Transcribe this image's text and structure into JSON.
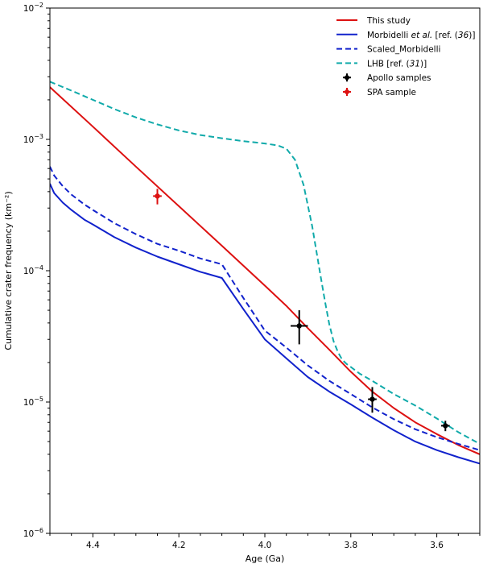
{
  "chart_data": {
    "type": "line",
    "title": "",
    "xlabel": "Age (Ga)",
    "ylabel": "Cumulative crater frequency (km⁻²)",
    "x_reversed": true,
    "xlim": [
      4.5,
      3.5
    ],
    "ylim": [
      1e-06,
      0.01
    ],
    "y_scale": "log",
    "x_ticks": [
      4.4,
      4.2,
      4.0,
      3.8,
      3.6
    ],
    "x_tick_labels": [
      "4.4",
      "4.2",
      "4.0",
      "3.8",
      "3.6"
    ],
    "y_ticks": [
      {
        "value": 1e-06,
        "base": "10",
        "exp": "−6"
      },
      {
        "value": 1e-05,
        "base": "10",
        "exp": "−5"
      },
      {
        "value": 0.0001,
        "base": "10",
        "exp": "−4"
      },
      {
        "value": 0.001,
        "base": "10",
        "exp": "−3"
      },
      {
        "value": 0.01,
        "base": "10",
        "exp": "−2"
      }
    ],
    "legend_position": "top-right",
    "series": [
      {
        "name": "This study",
        "legend": [
          {
            "text": "This study"
          }
        ],
        "color": "#dd1111",
        "style": "solid",
        "x": [
          4.5,
          4.4,
          4.3,
          4.2,
          4.1,
          4.0,
          3.95,
          3.9,
          3.85,
          3.8,
          3.75,
          3.7,
          3.65,
          3.6,
          3.55,
          3.5
        ],
        "y": [
          0.0025,
          0.00125,
          0.00062,
          0.00031,
          0.000155,
          7.7e-05,
          5.4e-05,
          3.65e-05,
          2.5e-05,
          1.7e-05,
          1.2e-05,
          9e-06,
          7e-06,
          5.7e-06,
          4.7e-06,
          4e-06
        ]
      },
      {
        "name": "Morbidelli et al. [ref. (36)]",
        "legend": [
          {
            "text": "Morbidelli "
          },
          {
            "text": "et al.",
            "italic": true
          },
          {
            "text": "  [ref. ("
          },
          {
            "text": "36",
            "italic": true
          },
          {
            "text": ")]"
          }
        ],
        "color": "#1122cc",
        "style": "solid",
        "x": [
          4.5,
          4.49,
          4.47,
          4.45,
          4.42,
          4.4,
          4.35,
          4.3,
          4.25,
          4.2,
          4.15,
          4.1,
          4.05,
          4.0,
          3.95,
          3.9,
          3.85,
          3.8,
          3.75,
          3.7,
          3.65,
          3.6,
          3.55,
          3.5
        ],
        "y": [
          0.00046,
          0.00039,
          0.00033,
          0.00029,
          0.000245,
          0.000225,
          0.00018,
          0.00015,
          0.000128,
          0.000112,
          9.8e-05,
          8.8e-05,
          5.1e-05,
          3e-05,
          2.15e-05,
          1.55e-05,
          1.2e-05,
          9.6e-06,
          7.6e-06,
          6.1e-06,
          5e-06,
          4.3e-06,
          3.8e-06,
          3.4e-06
        ]
      },
      {
        "name": "Scaled_Morbidelli",
        "legend": [
          {
            "text": "Scaled_Morbidelli"
          }
        ],
        "color": "#1122cc",
        "style": "dashed",
        "x": [
          4.5,
          4.49,
          4.47,
          4.45,
          4.42,
          4.4,
          4.35,
          4.3,
          4.25,
          4.2,
          4.15,
          4.1,
          4.05,
          4.0,
          3.95,
          3.9,
          3.85,
          3.8,
          3.75,
          3.7,
          3.65,
          3.6,
          3.55,
          3.5
        ],
        "y": [
          0.00062,
          0.00053,
          0.00044,
          0.00038,
          0.00032,
          0.00029,
          0.00023,
          0.00019,
          0.00016,
          0.000142,
          0.000124,
          0.000112,
          6.2e-05,
          3.5e-05,
          2.6e-05,
          1.9e-05,
          1.45e-05,
          1.15e-05,
          9.1e-06,
          7.4e-06,
          6.2e-06,
          5.4e-06,
          4.8e-06,
          4.3e-06
        ]
      },
      {
        "name": "LHB [ref. (31)]",
        "legend": [
          {
            "text": "LHB [ref. ("
          },
          {
            "text": "31",
            "italic": true
          },
          {
            "text": ")]"
          }
        ],
        "color": "#11aaaa",
        "style": "dashed",
        "x": [
          4.5,
          4.45,
          4.4,
          4.35,
          4.3,
          4.25,
          4.2,
          4.15,
          4.1,
          4.05,
          4.0,
          3.97,
          3.95,
          3.93,
          3.91,
          3.89,
          3.87,
          3.86,
          3.85,
          3.84,
          3.83,
          3.82,
          3.81,
          3.8,
          3.78,
          3.75,
          3.7,
          3.65,
          3.6,
          3.55,
          3.5
        ],
        "y": [
          0.00275,
          0.00235,
          0.002,
          0.0017,
          0.00147,
          0.0013,
          0.00117,
          0.00108,
          0.00102,
          0.00097,
          0.00093,
          0.0009,
          0.00085,
          0.0007,
          0.00045,
          0.00022,
          9e-05,
          5.8e-05,
          3.9e-05,
          2.9e-05,
          2.4e-05,
          2.1e-05,
          1.95e-05,
          1.85e-05,
          1.65e-05,
          1.45e-05,
          1.15e-05,
          9.4e-06,
          7.5e-06,
          5.9e-06,
          4.8e-06
        ]
      }
    ],
    "points": [
      {
        "name": "Apollo samples",
        "legend": [
          {
            "text": "Apollo samples"
          }
        ],
        "color": "#000000",
        "data": [
          {
            "x": 3.92,
            "y": 3.8e-05,
            "xerr": 0.02,
            "ylo": 2.75e-05,
            "yhi": 5e-05
          },
          {
            "x": 3.75,
            "y": 1.05e-05,
            "xerr": 0.01,
            "ylo": 8.3e-06,
            "yhi": 1.3e-05
          },
          {
            "x": 3.58,
            "y": 6.6e-06,
            "xerr": 0.01,
            "ylo": 6e-06,
            "yhi": 7.2e-06
          }
        ]
      },
      {
        "name": "SPA sample",
        "legend": [
          {
            "text": "SPA sample"
          }
        ],
        "color": "#dd1111",
        "data": [
          {
            "x": 4.25,
            "y": 0.00037,
            "xerr": 0.01,
            "ylo": 0.00032,
            "yhi": 0.00042
          }
        ]
      }
    ]
  }
}
